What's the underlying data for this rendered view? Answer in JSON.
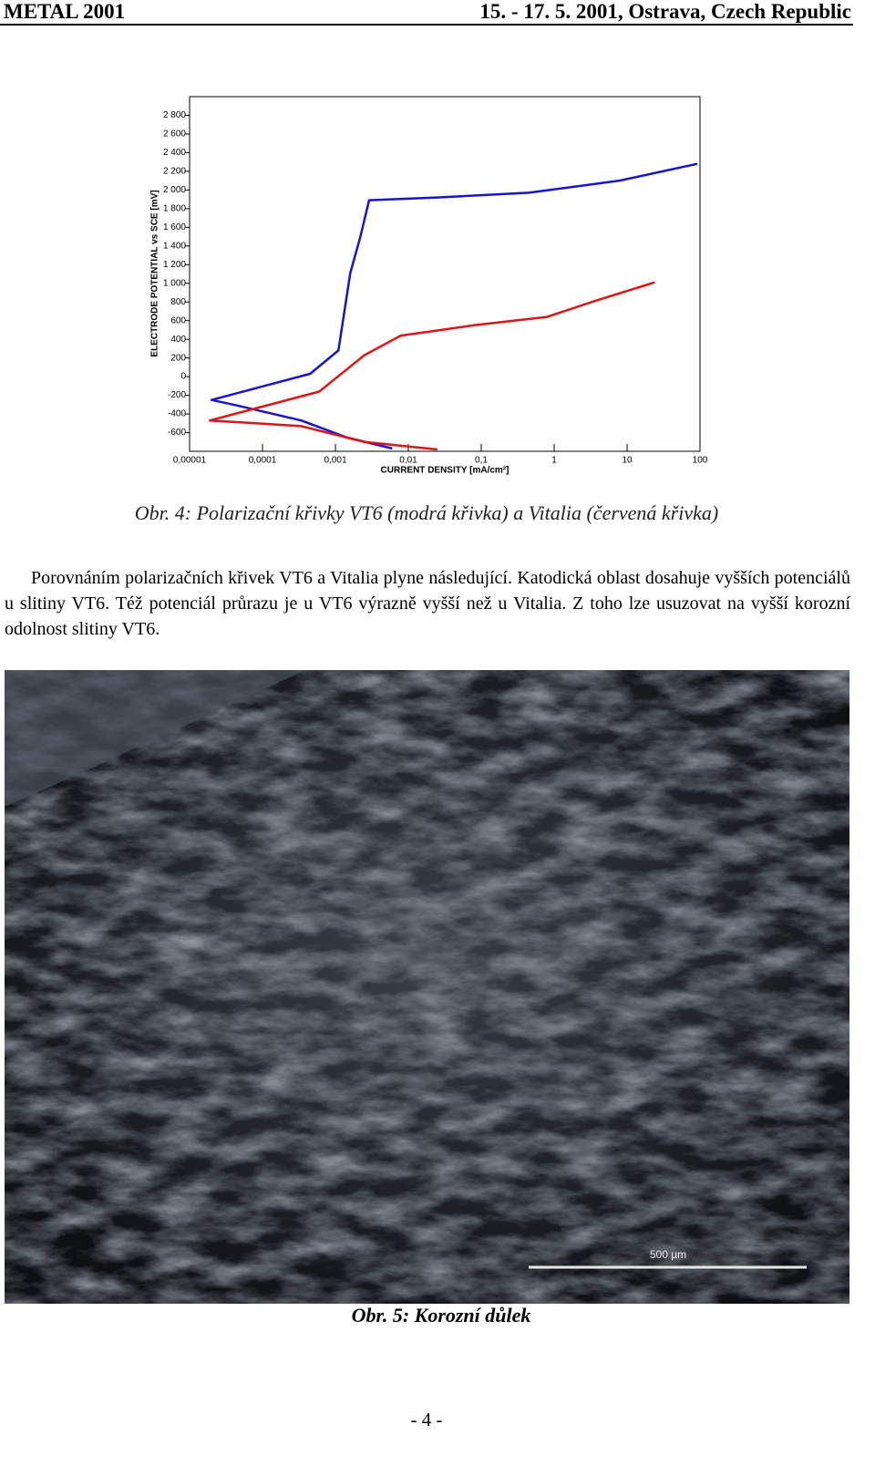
{
  "header": {
    "left": "METAL 2001",
    "right": "15. - 17. 5. 2001, Ostrava, Czech Republic"
  },
  "chart_data": {
    "type": "line",
    "y_label": "ELECTRODE POTENTIAL vs SCE  [mV]",
    "x_label": "CURRENT DENSITY  [mA/cm²]",
    "x_scale": "log",
    "xlim": [
      1e-05,
      100
    ],
    "xticks": [
      {
        "value": 1e-05,
        "label": "0,00001"
      },
      {
        "value": 0.0001,
        "label": "0,0001"
      },
      {
        "value": 0.001,
        "label": "0,001"
      },
      {
        "value": 0.01,
        "label": "0,01"
      },
      {
        "value": 0.1,
        "label": "0,1"
      },
      1,
      10,
      100
    ],
    "ylim": [
      -800,
      3000
    ],
    "yticks": [
      -600,
      -400,
      -200,
      0,
      200,
      400,
      600,
      800,
      {
        "value": 1000,
        "label": "1 000"
      },
      {
        "value": 1200,
        "label": "1 200"
      },
      {
        "value": 1400,
        "label": "1 400"
      },
      {
        "value": 1600,
        "label": "1 600"
      },
      {
        "value": 1800,
        "label": "1 800"
      },
      {
        "value": 2000,
        "label": "2 000"
      },
      {
        "value": 2200,
        "label": "2 200"
      },
      {
        "value": 2400,
        "label": "2 400"
      },
      {
        "value": 2600,
        "label": "2 600"
      },
      {
        "value": 2800,
        "label": "2 800"
      }
    ],
    "series": [
      {
        "name": "VT6",
        "color": "#1414d8",
        "x": [
          0.006,
          0.0014,
          0.00034,
          4.5e-05,
          2e-05,
          0.00045,
          0.0011,
          0.0016,
          0.0022,
          0.0029,
          0.025,
          0.45,
          7.9,
          92
        ],
        "values": [
          -770,
          -650,
          -470,
          -310,
          -250,
          30,
          280,
          1110,
          1500,
          1890,
          1920,
          1970,
          2100,
          2280
        ]
      },
      {
        "name": "Vitalia",
        "color": "#e01414",
        "x": [
          0.025,
          0.0025,
          0.00034,
          1.9e-05,
          0.0006,
          0.0025,
          0.0079,
          0.079,
          0.8,
          3.6,
          24
        ],
        "values": [
          -780,
          -700,
          -530,
          -470,
          -160,
          230,
          440,
          550,
          640,
          810,
          1010
        ]
      }
    ]
  },
  "figure4_caption": "Obr. 4: Polarizační křivky VT6 (modrá křivka) a Vitalia (červená křivka)",
  "paragraph": "Porovnáním polarizačních křivek VT6 a Vitalia plyne následující. Katodická oblast dosahuje vyšších potenciálů u slitiny VT6. Též potenciál průrazu je u VT6 výrazně vyšší než u Vitalia. Z toho lze usuzovat na vyšší korozní odolnost slitiny VT6.",
  "figure5": {
    "scale_label": "500 µm",
    "caption": "Obr. 5: Korozní důlek"
  },
  "page_number": "- 4 -"
}
